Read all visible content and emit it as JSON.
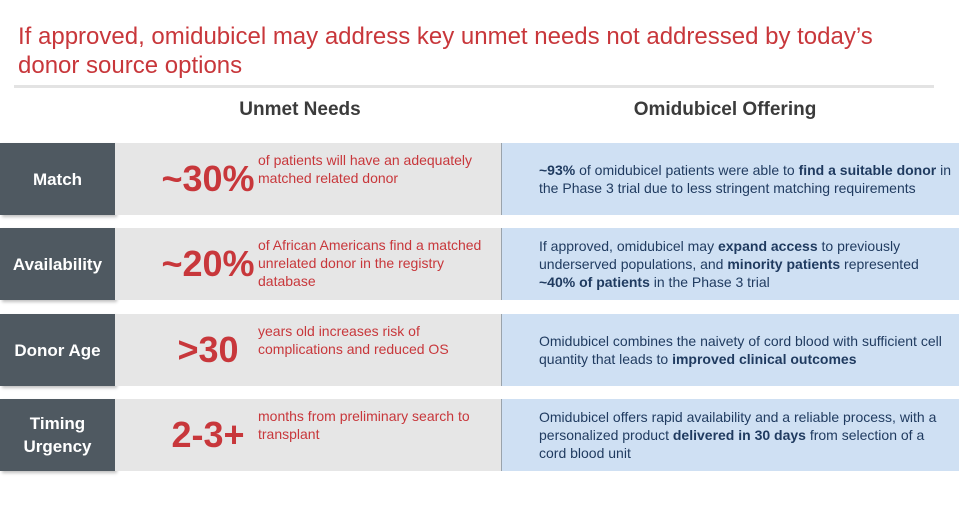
{
  "title": "If approved, omidubicel may address key unmet needs not addressed by today’s donor source options",
  "headers": {
    "needs": "Unmet Needs",
    "offering": "Omidubicel Offering"
  },
  "colors": {
    "accent_red": "#c8373b",
    "label_bg": "#4f5961",
    "needs_bg": "#e6e6e6",
    "offer_bg": "#cfe0f3",
    "offer_text": "#1f3a5f"
  },
  "rows": [
    {
      "label": "Match",
      "stat": "~30%",
      "need": "of patients will have an adequately matched related donor",
      "offer": [
        {
          "t": "~93%",
          "b": true
        },
        {
          "t": " of omidubicel patients were able to ",
          "b": false
        },
        {
          "t": "find a suitable donor",
          "b": true
        },
        {
          "t": " in the Phase 3 trial due to less stringent matching requirements",
          "b": false
        }
      ]
    },
    {
      "label": "Availability",
      "stat": "~20%",
      "need": "of African Americans find a matched unrelated donor in the registry database",
      "offer": [
        {
          "t": "If approved, omidubicel may ",
          "b": false
        },
        {
          "t": "expand access",
          "b": true
        },
        {
          "t": " to previously underserved populations, and ",
          "b": false
        },
        {
          "t": "minority patients",
          "b": true
        },
        {
          "t": " represented ",
          "b": false
        },
        {
          "t": "~40% of patients",
          "b": true
        },
        {
          "t": " in the Phase 3 trial",
          "b": false
        }
      ]
    },
    {
      "label": "Donor Age",
      "stat": ">30",
      "need": "years old increases risk of complications and reduced OS",
      "offer": [
        {
          "t": "Omidubicel combines the naivety of cord blood with sufficient cell quantity that leads to ",
          "b": false
        },
        {
          "t": "improved clinical outcomes",
          "b": true
        }
      ]
    },
    {
      "label": "Timing\nUrgency",
      "stat": "2-3+",
      "need": "months from preliminary search to transplant",
      "offer": [
        {
          "t": "Omidubicel offers rapid availability and a reliable process, with a personalized product ",
          "b": false
        },
        {
          "t": "delivered in 30 days",
          "b": true
        },
        {
          "t": " from selection of a cord blood unit",
          "b": false
        }
      ]
    }
  ]
}
